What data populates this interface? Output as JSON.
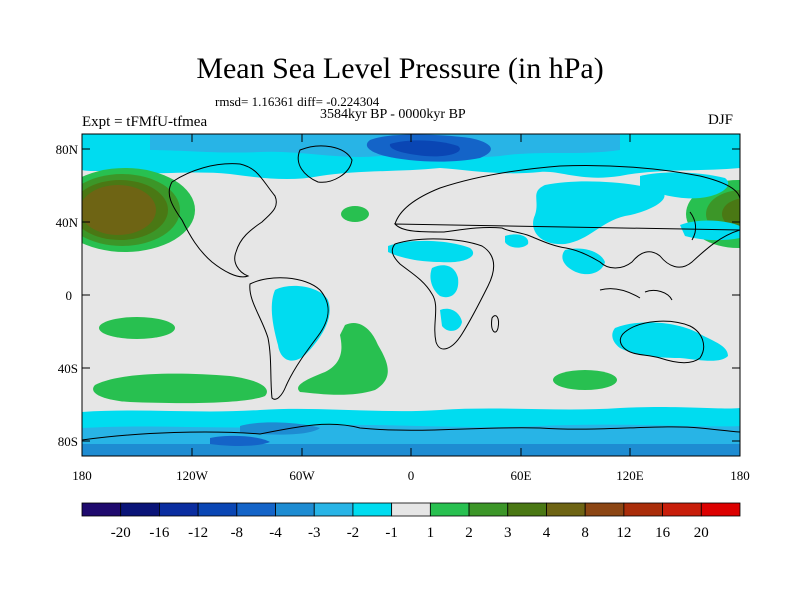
{
  "title": "Mean Sea Level Pressure (in hPa)",
  "rmsd_text": "rmsd= 1.16361 diff= -0.224304",
  "period": "3584kyr BP - 0000kyr BP",
  "experiment": "Expt = tFMfU-tfmea",
  "season": "DJF",
  "lat_labels": [
    "80N",
    "40N",
    "0",
    "40S",
    "80S"
  ],
  "lon_labels": [
    "180",
    "120W",
    "60W",
    "0",
    "60E",
    "120E",
    "180"
  ],
  "colorbar": {
    "colors": [
      "#1f0a6e",
      "#0a1478",
      "#0a2da0",
      "#0a46b4",
      "#1464c8",
      "#1e8cd2",
      "#28b4e6",
      "#00dcf0",
      "#e6e6e6",
      "#28c050",
      "#3c9628",
      "#4a7814",
      "#6e6414",
      "#8c4614",
      "#aa2d0a",
      "#c81e0a",
      "#dc0000"
    ],
    "labels": [
      "-20",
      "-16",
      "-12",
      "-8",
      "-4",
      "-3",
      "-2",
      "-1",
      "1",
      "2",
      "3",
      "4",
      "8",
      "12",
      "16",
      "20"
    ]
  },
  "colors": {
    "neutral": "#e6e6e6",
    "light_blue": "#00dcf0",
    "mid_blue": "#1e8cd2",
    "dark_blue": "#0a46b4",
    "green": "#28c050",
    "dark_green": "#3c9628",
    "olive": "#4a7814",
    "brown": "#6e6414"
  }
}
